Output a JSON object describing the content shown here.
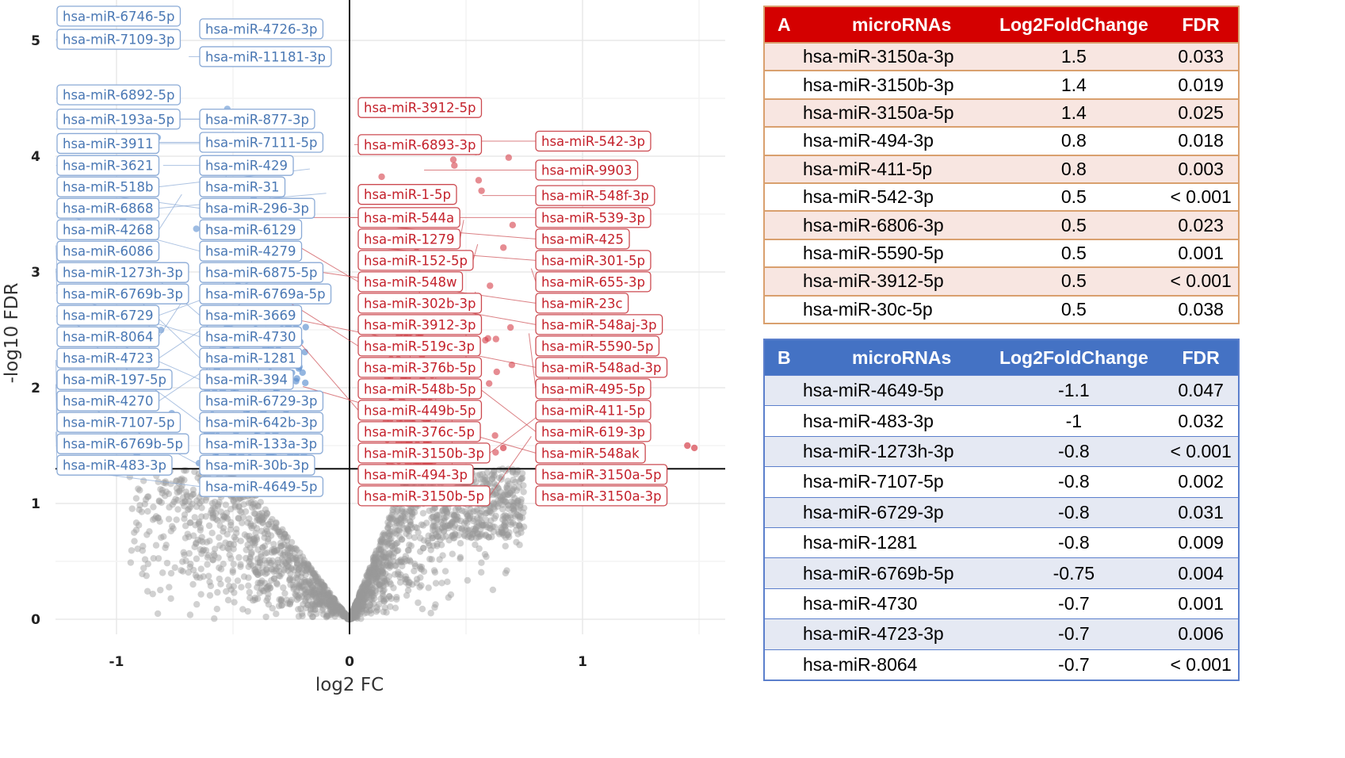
{
  "chart_data": {
    "type": "scatter",
    "title": "",
    "xlabel": "log2 FC",
    "ylabel": "-log10 FDR",
    "xlim": [
      -1.27,
      1.62
    ],
    "ylim": [
      0,
      5.35
    ],
    "x_ticks": [
      -1,
      0,
      1
    ],
    "y_ticks": [
      0,
      1,
      2,
      3,
      4,
      5
    ],
    "grid": true,
    "fdr_threshold_line": 1.3,
    "colors": {
      "down": "#5b8fd0",
      "up": "#d6404a",
      "ns": "#9a9a9a",
      "down_label": "#4a78b4",
      "up_label": "#c4222c"
    },
    "down_labels": [
      {
        "text": "hsa-miR-6746-5p",
        "x": -0.97,
        "y": 5.21
      },
      {
        "text": "hsa-miR-4726-3p",
        "x": -0.39,
        "y": 5.1
      },
      {
        "text": "hsa-miR-7109-3p",
        "x": -1.26,
        "y": 5.01
      },
      {
        "text": "hsa-miR-11181-3p",
        "x": -0.69,
        "y": 4.86
      },
      {
        "text": "hsa-miR-6892-5p",
        "x": -0.82,
        "y": 4.53
      },
      {
        "text": "hsa-miR-877-3p",
        "x": -1.26,
        "y": 4.32
      },
      {
        "text": "hsa-miR-7111-5p",
        "x": -0.88,
        "y": 4.12
      },
      {
        "text": "hsa-miR-193a-5p",
        "x": -0.32,
        "y": 4.32
      },
      {
        "text": "hsa-miR-3911",
        "x": -0.39,
        "y": 4.11
      },
      {
        "text": "hsa-miR-429",
        "x": -0.8,
        "y": 3.92
      },
      {
        "text": "hsa-miR-3621",
        "x": -1.26,
        "y": 3.92
      },
      {
        "text": "hsa-miR-31",
        "x": -0.53,
        "y": 3.9
      },
      {
        "text": "hsa-miR-518b",
        "x": -0.17,
        "y": 3.89
      },
      {
        "text": "hsa-miR-6868",
        "x": -0.1,
        "y": 3.68
      },
      {
        "text": "hsa-miR-6129",
        "x": -0.34,
        "y": 3.68
      },
      {
        "text": "hsa-miR-296-3p",
        "x": -1.2,
        "y": 3.71
      },
      {
        "text": "hsa-miR-4268",
        "x": -0.72,
        "y": 3.67
      },
      {
        "text": "hsa-miR-4279",
        "x": -1.26,
        "y": 3.51
      },
      {
        "text": "hsa-miR-6086",
        "x": -0.96,
        "y": 3.39
      },
      {
        "text": "hsa-miR-6875-5p",
        "x": -0.42,
        "y": 3.27
      },
      {
        "text": "hsa-miR-1273h-3p",
        "x": -1.26,
        "y": 3.23
      },
      {
        "text": "hsa-miR-6769a-5p",
        "x": -0.54,
        "y": 3.05
      },
      {
        "text": "hsa-miR-3669",
        "x": -0.86,
        "y": 3.0
      },
      {
        "text": "hsa-miR-6769b-3p",
        "x": -1.26,
        "y": 3.03
      },
      {
        "text": "hsa-miR-6729",
        "x": -0.31,
        "y": 3.0
      },
      {
        "text": "hsa-miR-1281",
        "x": -0.92,
        "y": 2.79
      },
      {
        "text": "hsa-miR-8064",
        "x": -0.7,
        "y": 2.8
      },
      {
        "text": "hsa-miR-4723",
        "x": -0.42,
        "y": 2.79
      },
      {
        "text": "hsa-miR-4730",
        "x": -1.26,
        "y": 2.82
      },
      {
        "text": "hsa-miR-197-5p",
        "x": -0.86,
        "y": 2.58
      },
      {
        "text": "hsa-miR-394",
        "x": -1.26,
        "y": 2.62
      },
      {
        "text": "hsa-miR-6729-3p",
        "x": -0.6,
        "y": 2.49
      },
      {
        "text": "hsa-miR-4270",
        "x": -0.37,
        "y": 2.49
      },
      {
        "text": "hsa-miR-642b-3p",
        "x": -1.15,
        "y": 2.45
      },
      {
        "text": "hsa-miR-7107-5p",
        "x": -1.26,
        "y": 2.24
      },
      {
        "text": "hsa-miR-133a-3p",
        "x": -0.39,
        "y": 2.22
      },
      {
        "text": "hsa-miR-6769b-5p",
        "x": -1.26,
        "y": 2.03
      },
      {
        "text": "hsa-miR-30b-3p",
        "x": -1.11,
        "y": 1.83
      },
      {
        "text": "hsa-miR-483-3p",
        "x": -1.26,
        "y": 1.62
      },
      {
        "text": "hsa-miR-4649-5p",
        "x": -1.13,
        "y": 1.27
      }
    ],
    "up_labels": [
      {
        "text": "hsa-miR-3912-5p",
        "x": 0.2,
        "y": 4.42
      },
      {
        "text": "hsa-miR-542-3p",
        "x": 0.52,
        "y": 4.13
      },
      {
        "text": "hsa-miR-6893-3p",
        "x": 0.02,
        "y": 4.1
      },
      {
        "text": "hsa-miR-9903",
        "x": 0.32,
        "y": 3.88
      },
      {
        "text": "hsa-miR-548f-3p",
        "x": 0.57,
        "y": 3.66
      },
      {
        "text": "hsa-miR-1-5p",
        "x": 0.17,
        "y": 3.67
      },
      {
        "text": "hsa-miR-1279",
        "x": 0.49,
        "y": 3.45
      },
      {
        "text": "hsa-miR-425",
        "x": 0.04,
        "y": 3.41
      },
      {
        "text": "hsa-miR-544a",
        "x": 0.0,
        "y": 3.47
      },
      {
        "text": "hsa-miR-539-3p",
        "x": -0.45,
        "y": 3.47
      },
      {
        "text": "hsa-miR-152-5p",
        "x": 0.55,
        "y": 3.24
      },
      {
        "text": "hsa-miR-301-5p",
        "x": 0.09,
        "y": 3.21
      },
      {
        "text": "hsa-miR-548w",
        "x": -0.21,
        "y": 3.21
      },
      {
        "text": "hsa-miR-655-3p",
        "x": 0.78,
        "y": 3.03
      },
      {
        "text": "hsa-miR-302b-3p",
        "x": 0.3,
        "y": 3.03
      },
      {
        "text": "hsa-miR-23c",
        "x": -0.13,
        "y": 3.0
      },
      {
        "text": "hsa-miR-5590-5p",
        "x": 1.04,
        "y": 2.67
      },
      {
        "text": "hsa-miR-3912-3p",
        "x": 0.54,
        "y": 2.83
      },
      {
        "text": "hsa-miR-548aj-3p",
        "x": 0.12,
        "y": 2.79
      },
      {
        "text": "hsa-miR-519c-3p",
        "x": -0.3,
        "y": 2.79
      },
      {
        "text": "hsa-miR-376b-5p",
        "x": 0.5,
        "y": 2.62
      },
      {
        "text": "hsa-miR-495-5p",
        "x": 0.77,
        "y": 2.47
      },
      {
        "text": "hsa-miR-548b-5p",
        "x": 0.26,
        "y": 2.57
      },
      {
        "text": "hsa-miR-548ad-3p",
        "x": -0.21,
        "y": 2.58
      },
      {
        "text": "hsa-miR-411-5p",
        "x": 0.94,
        "y": 2.26
      },
      {
        "text": "hsa-miR-376c-5p",
        "x": 0.37,
        "y": 2.26
      },
      {
        "text": "hsa-miR-449b-5p",
        "x": -0.21,
        "y": 2.38
      },
      {
        "text": "hsa-miR-619-3p",
        "x": 0.52,
        "y": 2.05
      },
      {
        "text": "hsa-miR-3150b-3p",
        "x": 1.0,
        "y": 2.05
      },
      {
        "text": "hsa-miR-548ak",
        "x": -0.2,
        "y": 2.01
      },
      {
        "text": "hsa-miR-494-3p",
        "x": 0.44,
        "y": 1.85
      },
      {
        "text": "hsa-miR-3150a-5p",
        "x": 0.99,
        "y": 1.82
      },
      {
        "text": "hsa-miR-3150b-5p",
        "x": 0.78,
        "y": 1.58
      },
      {
        "text": "hsa-miR-3150a-3p",
        "x": 1.0,
        "y": 1.37
      }
    ]
  },
  "table_a": {
    "letter": "A",
    "headers": [
      "microRNAs",
      "Log2FoldChange",
      "FDR"
    ],
    "rows": [
      [
        "hsa-miR-3150a-3p",
        "1.5",
        "0.033"
      ],
      [
        "hsa-miR-3150b-3p",
        "1.4",
        "0.019"
      ],
      [
        "hsa-miR-3150a-5p",
        "1.4",
        "0.025"
      ],
      [
        "hsa-miR-494-3p",
        "0.8",
        "0.018"
      ],
      [
        "hsa-miR-411-5p",
        "0.8",
        "0.003"
      ],
      [
        "hsa-miR-542-3p",
        "0.5",
        "< 0.001"
      ],
      [
        "hsa-miR-6806-3p",
        "0.5",
        "0.023"
      ],
      [
        "hsa-miR-5590-5p",
        "0.5",
        "0.001"
      ],
      [
        "hsa-miR-3912-5p",
        "0.5",
        "< 0.001"
      ],
      [
        "hsa-miR-30c-5p",
        "0.5",
        "0.038"
      ]
    ]
  },
  "table_b": {
    "letter": "B",
    "headers": [
      "microRNAs",
      "Log2FoldChange",
      "FDR"
    ],
    "rows": [
      [
        "hsa-miR-4649-5p",
        "-1.1",
        "0.047"
      ],
      [
        "hsa-miR-483-3p",
        "-1",
        "0.032"
      ],
      [
        "hsa-miR-1273h-3p",
        "-0.8",
        "< 0.001"
      ],
      [
        "hsa-miR-7107-5p",
        "-0.8",
        "0.002"
      ],
      [
        "hsa-miR-6729-3p",
        "-0.8",
        "0.031"
      ],
      [
        "hsa-miR-1281",
        "-0.8",
        "0.009"
      ],
      [
        "hsa-miR-6769b-5p",
        "-0.75",
        "0.004"
      ],
      [
        "hsa-miR-4730",
        "-0.7",
        "0.001"
      ],
      [
        "hsa-miR-4723-3p",
        "-0.7",
        "0.006"
      ],
      [
        "hsa-miR-8064",
        "-0.7",
        "< 0.001"
      ]
    ]
  }
}
